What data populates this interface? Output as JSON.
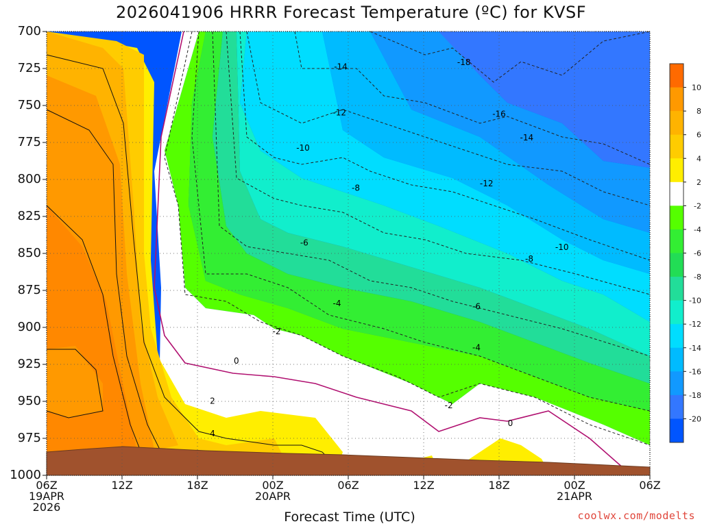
{
  "title": "2026041906 HRRR Forecast Temperature (ºC) for KVSF",
  "xlabel": "Forecast Time (UTC)",
  "credit": "coolwx.com/modelts",
  "chart_data": {
    "type": "heatmap",
    "title": "2026041906 HRRR Forecast Temperature (ºC) for KVSF",
    "xlabel": "Forecast Time (UTC)",
    "ylabel": "",
    "x_ticks": [
      {
        "h": 0,
        "lines": [
          "06Z",
          "19APR",
          "2026"
        ]
      },
      {
        "h": 6,
        "lines": [
          "12Z"
        ]
      },
      {
        "h": 12,
        "lines": [
          "18Z"
        ]
      },
      {
        "h": 18,
        "lines": [
          "00Z",
          "20APR"
        ]
      },
      {
        "h": 24,
        "lines": [
          "06Z"
        ]
      },
      {
        "h": 30,
        "lines": [
          "12Z"
        ]
      },
      {
        "h": 36,
        "lines": [
          "18Z"
        ]
      },
      {
        "h": 42,
        "lines": [
          "00Z",
          "21APR"
        ]
      },
      {
        "h": 48,
        "lines": [
          "06Z"
        ]
      }
    ],
    "xlim": [
      0,
      48
    ],
    "y_ticks": [
      700,
      725,
      750,
      775,
      800,
      825,
      850,
      875,
      900,
      925,
      950,
      975,
      1000
    ],
    "ylim": [
      1000,
      700
    ],
    "colorbar": {
      "ticks": [
        "10",
        "8",
        "6",
        "4",
        "2",
        "-2",
        "-4",
        "-6",
        "-8",
        "-10",
        "-12",
        "-14",
        "-16",
        "-18",
        "-20"
      ],
      "colors": [
        "#ff6a00",
        "#ff9900",
        "#ffb300",
        "#ffcc00",
        "#ffee00",
        "#ffffff",
        "#55ff00",
        "#33ee33",
        "#22dd55",
        "#22dd99",
        "#11eecc",
        "#00ddff",
        "#00bbff",
        "#1199ff",
        "#3377ff",
        "#0055ff"
      ]
    },
    "contour_labels": [
      {
        "v": "-18",
        "x": 33.2,
        "y": 721
      },
      {
        "v": "-14",
        "x": 23.4,
        "y": 724
      },
      {
        "v": "-16",
        "x": 36.0,
        "y": 756
      },
      {
        "v": "-12",
        "x": 23.3,
        "y": 755
      },
      {
        "v": "-14",
        "x": 38.2,
        "y": 772
      },
      {
        "v": "-10",
        "x": 20.4,
        "y": 779
      },
      {
        "v": "-12",
        "x": 35.0,
        "y": 803
      },
      {
        "v": "-8",
        "x": 24.6,
        "y": 806
      },
      {
        "v": "-10",
        "x": 41.0,
        "y": 846
      },
      {
        "v": "-6",
        "x": 20.5,
        "y": 843
      },
      {
        "v": "-8",
        "x": 38.4,
        "y": 854
      },
      {
        "v": "-4",
        "x": 23.1,
        "y": 884
      },
      {
        "v": "-6",
        "x": 34.2,
        "y": 886
      },
      {
        "v": "-2",
        "x": 18.3,
        "y": 903
      },
      {
        "v": "-4",
        "x": 34.2,
        "y": 914
      },
      {
        "v": "0",
        "x": 15.1,
        "y": 923
      },
      {
        "v": "-2",
        "x": 32.0,
        "y": 953
      },
      {
        "v": "2",
        "x": 13.2,
        "y": 950
      },
      {
        "v": "0",
        "x": 36.9,
        "y": 965
      },
      {
        "v": "4",
        "x": 13.2,
        "y": 972
      }
    ]
  }
}
